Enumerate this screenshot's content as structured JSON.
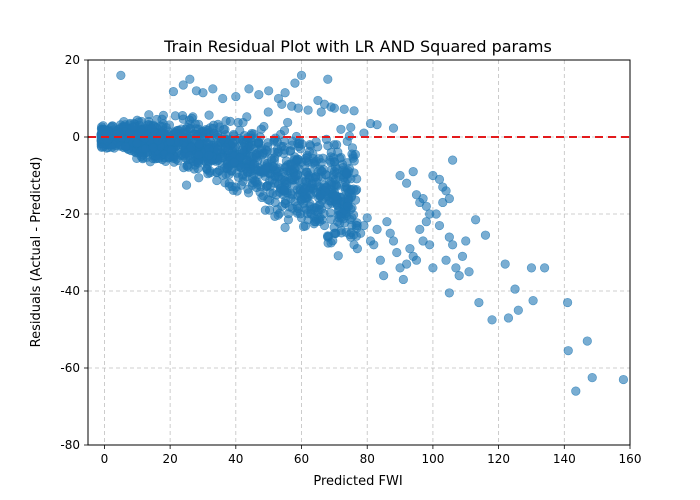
{
  "chart_data": {
    "type": "scatter",
    "title": "Train Residual Plot with LR AND Squared params",
    "xlabel": "Predicted FWI",
    "ylabel": "Residuals (Actual - Predicted)",
    "xlim": [
      -5,
      160
    ],
    "ylim": [
      -80,
      20
    ],
    "xticks": [
      0,
      20,
      40,
      60,
      80,
      100,
      120,
      140,
      160
    ],
    "yticks": [
      -80,
      -60,
      -40,
      -20,
      0,
      20
    ],
    "grid": true,
    "point_color": "#1f77b4",
    "reference_line": {
      "y": 0,
      "color": "#e31a1c",
      "style": "dashed"
    },
    "series": [
      {
        "points": [
          [
            5,
            16
          ],
          [
            24,
            13.5
          ],
          [
            26,
            15
          ],
          [
            28,
            12
          ],
          [
            33,
            12.5
          ],
          [
            44,
            12.5
          ],
          [
            55,
            11.5
          ],
          [
            58,
            14
          ],
          [
            60,
            16
          ],
          [
            68,
            15
          ],
          [
            21,
            11.8
          ],
          [
            30,
            11.5
          ],
          [
            47,
            11
          ],
          [
            53,
            10
          ],
          [
            50,
            12
          ],
          [
            40,
            10.5
          ],
          [
            36,
            10
          ],
          [
            65,
            9.5
          ],
          [
            67,
            8.5
          ],
          [
            69,
            7.8
          ],
          [
            70,
            7.5
          ],
          [
            73,
            7.2
          ],
          [
            76,
            6.8
          ],
          [
            81,
            3.5
          ],
          [
            83,
            3.2
          ],
          [
            88,
            2.3
          ],
          [
            75,
            2.5
          ],
          [
            72,
            2
          ],
          [
            79,
            1
          ],
          [
            66,
            6.5
          ],
          [
            62,
            7
          ],
          [
            59,
            7.5
          ],
          [
            57,
            8
          ],
          [
            54,
            8.5
          ],
          [
            25,
            -12.5
          ],
          [
            38,
            -12
          ],
          [
            40,
            -13
          ],
          [
            45,
            -12.5
          ],
          [
            46,
            -11.5
          ],
          [
            49,
            -19
          ],
          [
            52,
            -17
          ],
          [
            54,
            -18
          ],
          [
            55,
            -23.5
          ],
          [
            56,
            -21.5
          ],
          [
            60,
            -21
          ],
          [
            62,
            -21.5
          ],
          [
            63,
            -20
          ],
          [
            65,
            -19.5
          ],
          [
            64,
            -22
          ],
          [
            67,
            -23
          ],
          [
            68,
            -26
          ],
          [
            69,
            -27.5
          ],
          [
            70,
            -25
          ],
          [
            71,
            -22
          ],
          [
            72,
            -20
          ],
          [
            73,
            -19
          ],
          [
            74,
            -18
          ],
          [
            75,
            -26
          ],
          [
            76,
            -28
          ],
          [
            77,
            -29
          ],
          [
            78,
            -25
          ],
          [
            79,
            -23
          ],
          [
            80,
            -21
          ],
          [
            81,
            -27
          ],
          [
            82,
            -28
          ],
          [
            83,
            -24
          ],
          [
            84,
            -32
          ],
          [
            85,
            -36
          ],
          [
            86,
            -22
          ],
          [
            87,
            -25
          ],
          [
            88,
            -27
          ],
          [
            89,
            -30
          ],
          [
            90,
            -34
          ],
          [
            91,
            -37
          ],
          [
            92,
            -33
          ],
          [
            93,
            -29
          ],
          [
            94,
            -31
          ],
          [
            95,
            -32
          ],
          [
            96,
            -24
          ],
          [
            97,
            -27
          ],
          [
            98,
            -22
          ],
          [
            99,
            -28
          ],
          [
            100,
            -34
          ],
          [
            101,
            -20
          ],
          [
            102,
            -23
          ],
          [
            103,
            -17
          ],
          [
            104,
            -32
          ],
          [
            105,
            -26
          ],
          [
            106,
            -28
          ],
          [
            107,
            -34
          ],
          [
            108,
            -36
          ],
          [
            109,
            -31
          ],
          [
            110,
            -27
          ],
          [
            111,
            -35
          ],
          [
            113,
            -21.5
          ],
          [
            114,
            -43
          ],
          [
            116,
            -25.5
          ],
          [
            118,
            -47.5
          ],
          [
            122,
            -33
          ],
          [
            123,
            -47
          ],
          [
            125,
            -39.5
          ],
          [
            126,
            -45
          ],
          [
            130,
            -34
          ],
          [
            130.5,
            -42.5
          ],
          [
            134,
            -34
          ],
          [
            141,
            -43
          ],
          [
            141.2,
            -55.5
          ],
          [
            143.5,
            -66
          ],
          [
            147,
            -53
          ],
          [
            148.5,
            -62.5
          ],
          [
            158,
            -63
          ],
          [
            100,
            -10
          ],
          [
            102,
            -11
          ],
          [
            103,
            -13
          ],
          [
            104,
            -14
          ],
          [
            105,
            -16
          ],
          [
            106,
            -6
          ],
          [
            105,
            -40.5
          ],
          [
            90,
            -10
          ],
          [
            92,
            -12
          ],
          [
            94,
            -9
          ],
          [
            95,
            -15
          ],
          [
            96,
            -17
          ],
          [
            97,
            -16
          ],
          [
            98,
            -18
          ],
          [
            99,
            -20
          ]
        ]
      }
    ]
  }
}
